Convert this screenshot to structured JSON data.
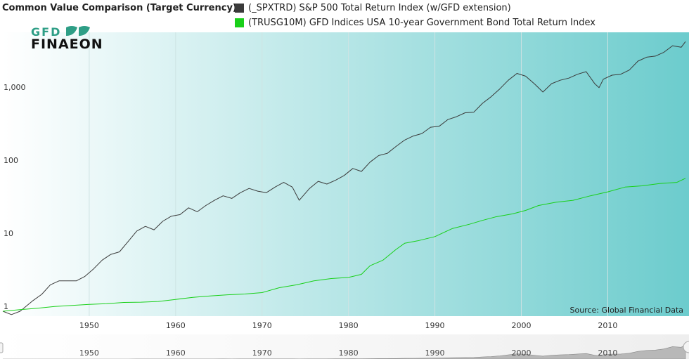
{
  "title": "Common Value Comparison (Target Currency)",
  "logo": {
    "line1": "GFD",
    "line2": "FINAEON"
  },
  "source": "Source: Global Financial Data",
  "colors": {
    "series0": "#3a3a3a",
    "series1": "#19d019",
    "bg_left": "#ffffff",
    "bg_right": "#6ccccd"
  },
  "chart_data": {
    "type": "line",
    "title": "Common Value Comparison (Target Currency)",
    "xlabel": "",
    "ylabel": "",
    "y_scale": "log",
    "ylim": [
      1,
      8000
    ],
    "xlim": [
      1940.0,
      2019.0
    ],
    "x_ticks": [
      "1950",
      "1960",
      "1970",
      "1980",
      "1990",
      "2000",
      "2010"
    ],
    "y_ticks": [
      "1",
      "10",
      "100",
      "1,000"
    ],
    "grid": "vertical",
    "legend_position": "top",
    "series": [
      {
        "name": "(_SPXTRD) S&P 500 Total Return Index (w/GFD extension)",
        "color": "#3a3a3a",
        "points": [
          [
            1940.0,
            1.0
          ],
          [
            1941.0,
            0.9
          ],
          [
            1942.0,
            1.0
          ],
          [
            1943.5,
            1.4
          ],
          [
            1944.5,
            1.7
          ],
          [
            1945.5,
            2.3
          ],
          [
            1946.5,
            2.6
          ],
          [
            1947.5,
            2.6
          ],
          [
            1948.5,
            2.6
          ],
          [
            1949.5,
            3.0
          ],
          [
            1950.5,
            3.8
          ],
          [
            1951.5,
            5.0
          ],
          [
            1952.5,
            6.0
          ],
          [
            1953.5,
            6.5
          ],
          [
            1954.5,
            9.0
          ],
          [
            1955.5,
            12.5
          ],
          [
            1956.5,
            14.5
          ],
          [
            1957.5,
            13.0
          ],
          [
            1958.5,
            17.0
          ],
          [
            1959.5,
            20.0
          ],
          [
            1960.5,
            21.0
          ],
          [
            1961.5,
            26.0
          ],
          [
            1962.5,
            23.0
          ],
          [
            1963.5,
            28.0
          ],
          [
            1964.5,
            33.0
          ],
          [
            1965.5,
            38.0
          ],
          [
            1966.5,
            35.0
          ],
          [
            1967.5,
            42.0
          ],
          [
            1968.5,
            48.0
          ],
          [
            1969.5,
            44.0
          ],
          [
            1970.5,
            42.0
          ],
          [
            1971.5,
            50.0
          ],
          [
            1972.5,
            58.0
          ],
          [
            1973.5,
            50.0
          ],
          [
            1974.3,
            33.0
          ],
          [
            1975.5,
            48.0
          ],
          [
            1976.5,
            60.0
          ],
          [
            1977.5,
            55.0
          ],
          [
            1978.5,
            62.0
          ],
          [
            1979.5,
            72.0
          ],
          [
            1980.5,
            90.0
          ],
          [
            1981.5,
            82.0
          ],
          [
            1982.5,
            110.0
          ],
          [
            1983.5,
            135.0
          ],
          [
            1984.5,
            145.0
          ],
          [
            1985.5,
            180.0
          ],
          [
            1986.5,
            220.0
          ],
          [
            1987.5,
            250.0
          ],
          [
            1988.5,
            270.0
          ],
          [
            1989.5,
            330.0
          ],
          [
            1990.5,
            340.0
          ],
          [
            1991.5,
            420.0
          ],
          [
            1992.5,
            460.0
          ],
          [
            1993.5,
            520.0
          ],
          [
            1994.5,
            530.0
          ],
          [
            1995.5,
            700.0
          ],
          [
            1996.5,
            860.0
          ],
          [
            1997.5,
            1100.0
          ],
          [
            1998.5,
            1450.0
          ],
          [
            1999.5,
            1800.0
          ],
          [
            2000.5,
            1650.0
          ],
          [
            2001.5,
            1300.0
          ],
          [
            2002.5,
            1000.0
          ],
          [
            2003.5,
            1300.0
          ],
          [
            2004.5,
            1450.0
          ],
          [
            2005.5,
            1550.0
          ],
          [
            2006.5,
            1750.0
          ],
          [
            2007.5,
            1900.0
          ],
          [
            2008.5,
            1300.0
          ],
          [
            2009.0,
            1150.0
          ],
          [
            2009.5,
            1500.0
          ],
          [
            2010.5,
            1700.0
          ],
          [
            2011.5,
            1750.0
          ],
          [
            2012.5,
            2000.0
          ],
          [
            2013.5,
            2650.0
          ],
          [
            2014.5,
            3000.0
          ],
          [
            2015.5,
            3100.0
          ],
          [
            2016.5,
            3500.0
          ],
          [
            2017.5,
            4300.0
          ],
          [
            2018.5,
            4100.0
          ],
          [
            2019.0,
            4900.0
          ]
        ]
      },
      {
        "name": "(TRUSG10M) GFD Indices USA 10-year Government Bond Total Return Index",
        "color": "#19d019",
        "points": [
          [
            1940.0,
            1.0
          ],
          [
            1942.0,
            1.05
          ],
          [
            1944.0,
            1.1
          ],
          [
            1946.0,
            1.16
          ],
          [
            1948.0,
            1.2
          ],
          [
            1950.0,
            1.24
          ],
          [
            1952.0,
            1.27
          ],
          [
            1954.0,
            1.32
          ],
          [
            1956.0,
            1.33
          ],
          [
            1958.0,
            1.36
          ],
          [
            1960.0,
            1.45
          ],
          [
            1962.0,
            1.55
          ],
          [
            1964.0,
            1.62
          ],
          [
            1966.0,
            1.68
          ],
          [
            1968.0,
            1.72
          ],
          [
            1970.0,
            1.8
          ],
          [
            1972.0,
            2.1
          ],
          [
            1974.0,
            2.3
          ],
          [
            1976.0,
            2.6
          ],
          [
            1978.0,
            2.8
          ],
          [
            1980.0,
            2.9
          ],
          [
            1981.5,
            3.2
          ],
          [
            1982.5,
            4.2
          ],
          [
            1984.0,
            5.0
          ],
          [
            1985.5,
            7.0
          ],
          [
            1986.5,
            8.5
          ],
          [
            1988.0,
            9.2
          ],
          [
            1990.0,
            10.5
          ],
          [
            1992.0,
            13.5
          ],
          [
            1994.0,
            15.5
          ],
          [
            1995.5,
            17.5
          ],
          [
            1997.0,
            19.5
          ],
          [
            1999.0,
            21.5
          ],
          [
            2000.5,
            24.0
          ],
          [
            2002.0,
            28.0
          ],
          [
            2004.0,
            31.0
          ],
          [
            2006.0,
            33.0
          ],
          [
            2008.0,
            38.0
          ],
          [
            2010.0,
            43.0
          ],
          [
            2012.0,
            50.0
          ],
          [
            2014.0,
            52.0
          ],
          [
            2016.0,
            56.0
          ],
          [
            2018.0,
            58.0
          ],
          [
            2019.0,
            66.0
          ]
        ]
      }
    ]
  }
}
